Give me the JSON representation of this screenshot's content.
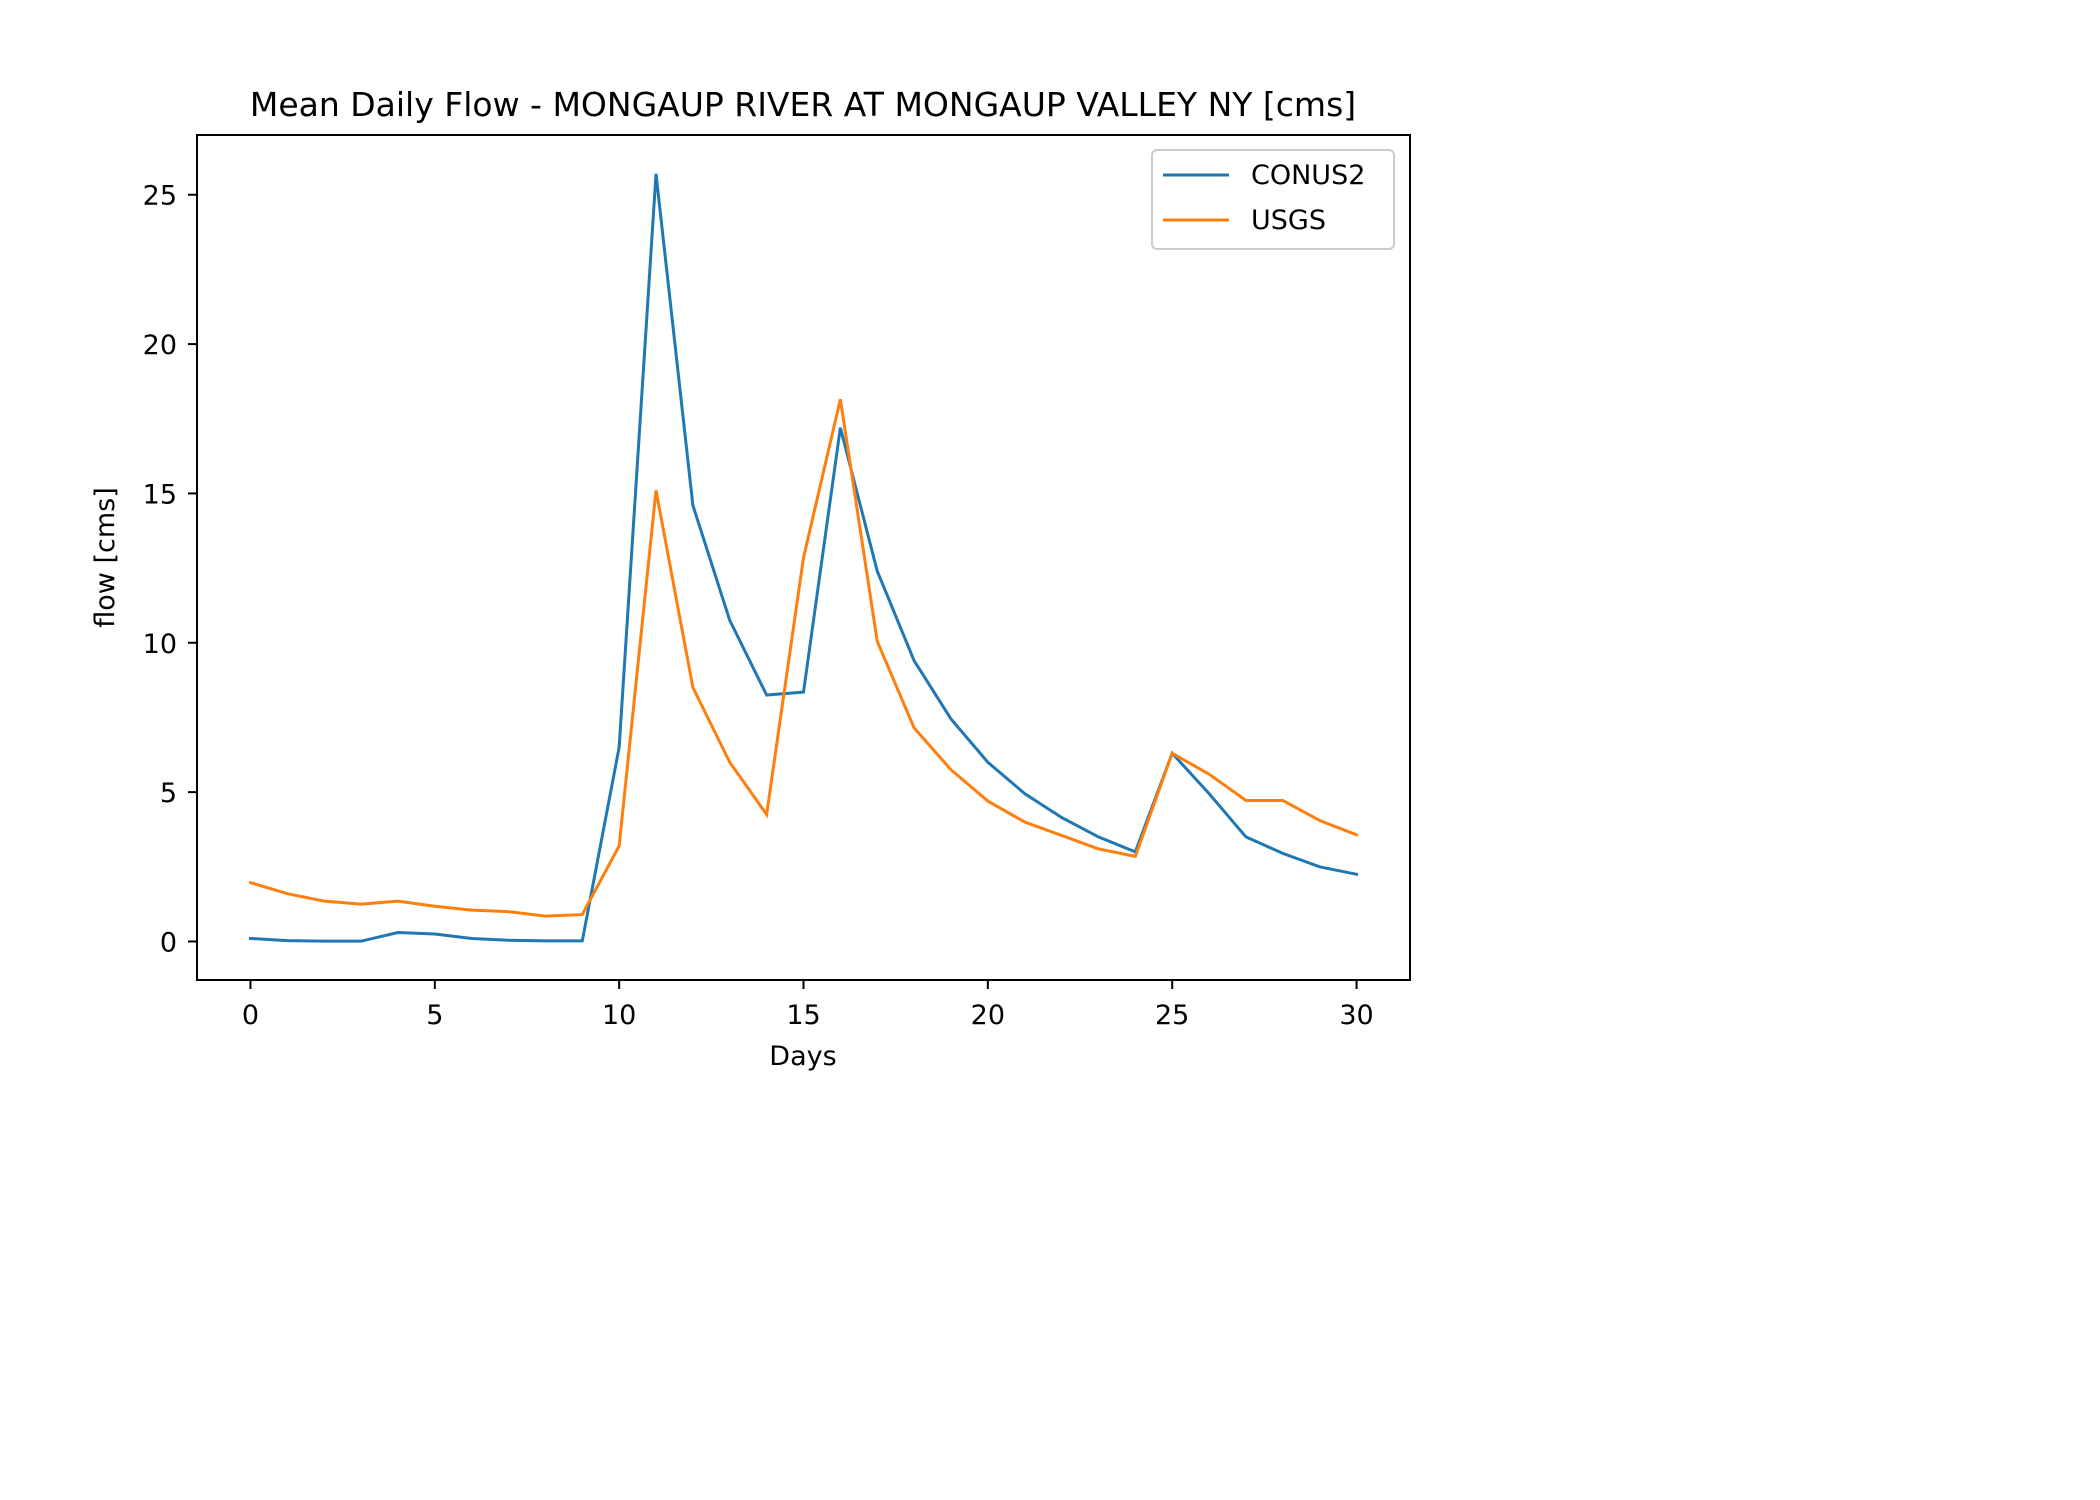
{
  "chart_data": {
    "type": "line",
    "title": "Mean Daily Flow - MONGAUP RIVER AT MONGAUP VALLEY NY [cms]",
    "xlabel": "Days",
    "ylabel": "flow [cms]",
    "xlim": [
      -1.45,
      31.45
    ],
    "ylim": [
      -1.29,
      27.0
    ],
    "xticks": [
      0,
      5,
      10,
      15,
      20,
      25,
      30
    ],
    "yticks": [
      0,
      5,
      10,
      15,
      20,
      25
    ],
    "grid": false,
    "legend_position": "upper right",
    "x": [
      0,
      1,
      2,
      3,
      4,
      5,
      6,
      7,
      8,
      9,
      10,
      11,
      12,
      13,
      14,
      15,
      16,
      17,
      18,
      19,
      20,
      21,
      22,
      23,
      24,
      25,
      26,
      27,
      28,
      29,
      30
    ],
    "series": [
      {
        "name": "CONUS2",
        "color": "#1f77b4",
        "values": [
          0.1,
          0.03,
          0.01,
          0.01,
          0.3,
          0.25,
          0.1,
          0.04,
          0.02,
          0.02,
          6.5,
          25.7,
          14.6,
          10.75,
          8.25,
          8.35,
          17.2,
          12.4,
          9.4,
          7.45,
          6.0,
          4.95,
          4.15,
          3.5,
          3.0,
          6.3,
          4.95,
          3.5,
          2.95,
          2.5,
          2.25
        ]
      },
      {
        "name": "USGS",
        "color": "#ff7f0e",
        "values": [
          1.97,
          1.6,
          1.35,
          1.25,
          1.35,
          1.18,
          1.05,
          1.0,
          0.85,
          0.9,
          3.2,
          15.1,
          8.5,
          6.0,
          4.25,
          12.85,
          18.15,
          10.05,
          7.15,
          5.75,
          4.7,
          4.0,
          3.55,
          3.1,
          2.85,
          6.3,
          5.6,
          4.72,
          4.72,
          4.05,
          3.57
        ]
      }
    ]
  }
}
